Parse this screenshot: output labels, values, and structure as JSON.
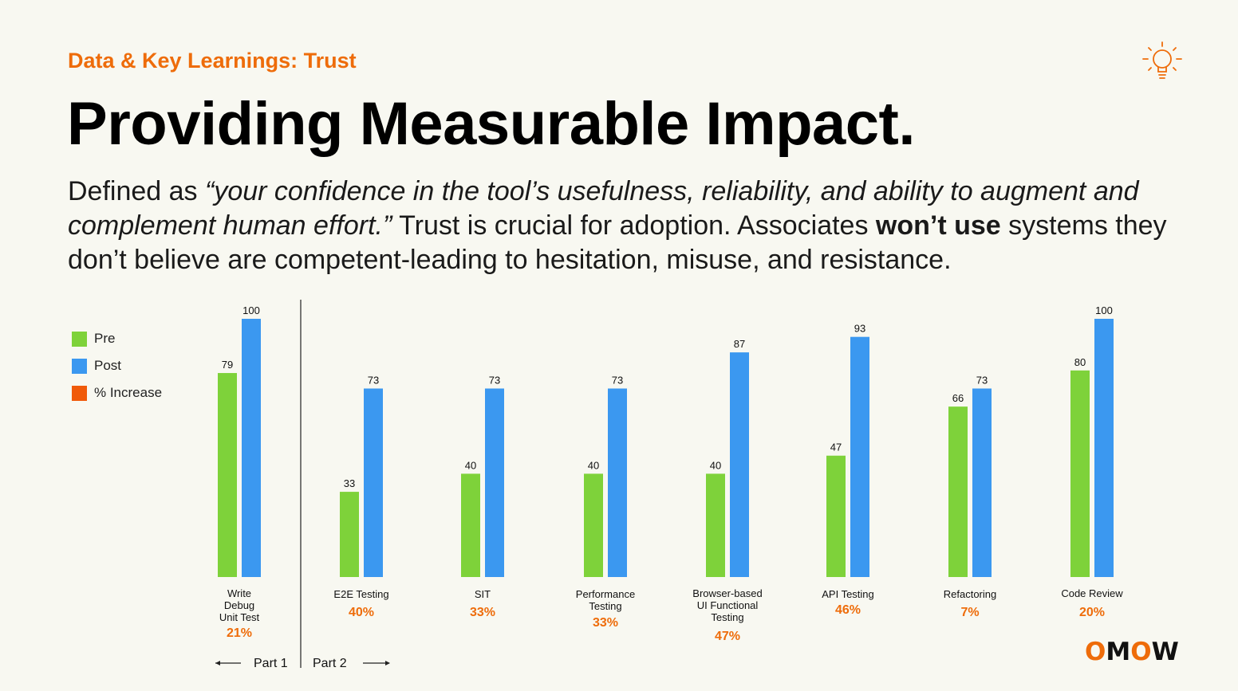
{
  "header": {
    "kicker": "Data & Key Learnings: Trust",
    "title": "Providing Measurable Impact."
  },
  "body": {
    "p1": "Defined as ",
    "p2_italic": "“your confidence in the tool’s usefulness, reliability, and ability to augment and complement human effort.”",
    "p3": " Trust is crucial for adoption. Associates ",
    "p4_bold": "won’t use",
    "p5": " systems they don’t believe are competent-leading to hesitation, misuse, and resistance."
  },
  "icons": {
    "top_right": "lightbulb-icon"
  },
  "colors": {
    "accent": "#ee6c0a",
    "pre": "#7ed23a",
    "post": "#3b98f0",
    "increase": "#f05a0a"
  },
  "legend": [
    {
      "label": "Pre",
      "color": "#7ed23a"
    },
    {
      "label": "Post",
      "color": "#3b98f0"
    },
    {
      "label": "% Increase",
      "color": "#f05a0a"
    }
  ],
  "parts": {
    "part1": "Part 1",
    "part2": "Part 2"
  },
  "logo": {
    "text": "OMOW"
  },
  "chart_data": {
    "type": "bar",
    "title": "",
    "xlabel": "",
    "ylabel": "",
    "ylim": [
      0,
      100
    ],
    "categories": [
      "Write\nDebug\nUnit Test",
      "E2E Testing",
      "SIT",
      "Performance\nTesting",
      "Browser-based\nUI Functional\nTesting",
      "API Testing",
      "Refactoring",
      "Code Review"
    ],
    "series": [
      {
        "name": "Pre",
        "values": [
          79,
          33,
          40,
          40,
          40,
          47,
          66,
          80
        ]
      },
      {
        "name": "Post",
        "values": [
          100,
          73,
          73,
          73,
          87,
          93,
          73,
          100
        ]
      }
    ],
    "increase": [
      "21%",
      "40%",
      "33%",
      "33%",
      "47%",
      "46%",
      "7%",
      "20%"
    ]
  }
}
